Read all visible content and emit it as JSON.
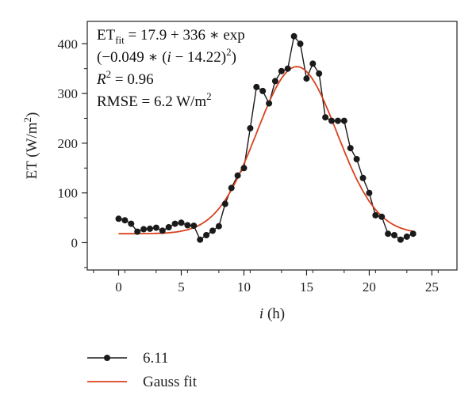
{
  "chart_data": {
    "type": "line",
    "title": "",
    "xlabel_var": "i",
    "xlabel_unit": " (h)",
    "ylabel_main": "ET (W/m",
    "ylabel_sup": "2",
    "ylabel_close": ")",
    "xlim": [
      -2.5,
      27
    ],
    "ylim": [
      -55,
      445
    ],
    "xticks": [
      0,
      5,
      10,
      15,
      20,
      25
    ],
    "yticks": [
      0,
      100,
      200,
      300,
      400
    ],
    "grid": false,
    "legend_position": "bottom-left, below plot",
    "series": [
      {
        "name": "6.11",
        "color": "#1a1a1a",
        "marker": "circle",
        "x": [
          0,
          0.5,
          1,
          1.5,
          2,
          2.5,
          3,
          3.5,
          4,
          4.5,
          5,
          5.5,
          6,
          6.5,
          7,
          7.5,
          8,
          8.5,
          9,
          9.5,
          10,
          10.5,
          11,
          11.5,
          12,
          12.5,
          13,
          13.5,
          14,
          14.5,
          15,
          15.5,
          16,
          16.5,
          17,
          17.5,
          18,
          18.5,
          19,
          19.5,
          20,
          20.5,
          21,
          21.5,
          22,
          22.5,
          23,
          23.5
        ],
        "y": [
          48,
          45,
          38,
          22,
          27,
          28,
          30,
          24,
          31,
          38,
          40,
          35,
          34,
          6,
          15,
          24,
          33,
          78,
          110,
          135,
          150,
          230,
          313,
          305,
          280,
          325,
          345,
          350,
          415,
          400,
          330,
          360,
          340,
          252,
          245,
          245,
          245,
          190,
          168,
          130,
          100,
          55,
          52,
          18,
          15,
          6,
          12,
          18
        ]
      },
      {
        "name": "Gauss fit",
        "color": "#d9411e",
        "marker": "none",
        "model": {
          "a": 17.9,
          "b": 336,
          "c": 0.049,
          "d": 14.22,
          "x_range": [
            0,
            23.5
          ]
        }
      }
    ],
    "annotation": {
      "line1_main": "ET",
      "line1_sub": "fit",
      "line1_rest": " = 17.9 + 336 ∗ exp",
      "line2_main": "(−0.049 ∗ (",
      "line2_var": "i",
      "line2_rest": " − 14.22)",
      "line2_sup": "2",
      "line2_close": ")",
      "line3_var": "R",
      "line3_sup": "2",
      "line3_rest": " = 0.96",
      "line4_main": "RMSE = 6.2 W/m",
      "line4_sup": "2"
    }
  }
}
